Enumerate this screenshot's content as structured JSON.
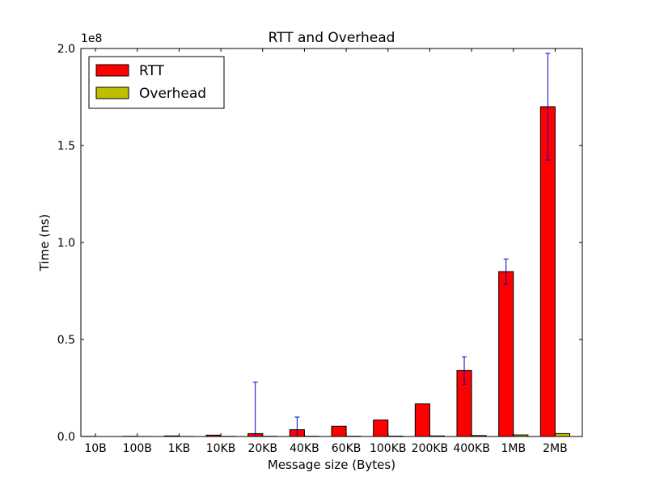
{
  "chart_data": {
    "type": "bar",
    "title": "RTT and Overhead",
    "xlabel": "Message size (Bytes)",
    "ylabel": "Time (ns)",
    "y_offset_label": "1e8",
    "y_scale_factor": 100000000,
    "ylim": [
      0,
      2.0
    ],
    "yticks": [
      0.0,
      0.5,
      1.0,
      1.5,
      2.0
    ],
    "ytick_labels": [
      "0.0",
      "0.5",
      "1.0",
      "1.5",
      "2.0"
    ],
    "categories": [
      "10B",
      "100B",
      "1KB",
      "10KB",
      "20KB",
      "40KB",
      "60KB",
      "100KB",
      "200KB",
      "400KB",
      "1MB",
      "2MB"
    ],
    "series": [
      {
        "name": "RTT",
        "color": "#ff0000",
        "values": [
          0.0005,
          0.001,
          0.003,
          0.007,
          0.015,
          0.035,
          0.053,
          0.085,
          0.168,
          0.34,
          0.85,
          1.7
        ],
        "errors": [
          0.0,
          0.0,
          0.0,
          0.0,
          0.265,
          0.065,
          0.0,
          0.0,
          0.0,
          0.07,
          0.065,
          0.275
        ]
      },
      {
        "name": "Overhead",
        "color": "#bfbf00",
        "values": [
          0.0,
          0.0003,
          0.0005,
          0.0008,
          0.001,
          0.0012,
          0.0014,
          0.002,
          0.003,
          0.005,
          0.008,
          0.015
        ]
      }
    ],
    "error_color": "#0000cc",
    "legend": "top-left",
    "grid": false
  }
}
